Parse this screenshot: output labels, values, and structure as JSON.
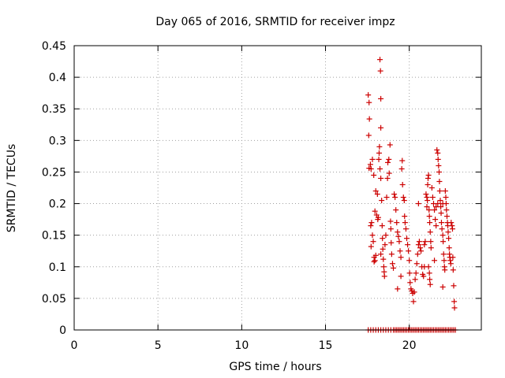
{
  "chart_data": {
    "type": "scatter",
    "title": "Day 065 of 2016, SRMTID for receiver impz",
    "xlabel": "GPS time / hours",
    "ylabel": "SRMTID / TECUs",
    "xlim": [
      0,
      24.3
    ],
    "ylim": [
      0,
      0.45
    ],
    "grid": true,
    "marker": "+",
    "color": "#cc0000",
    "x_ticks": [
      {
        "value": 0,
        "label": "0"
      },
      {
        "value": 5,
        "label": "5"
      },
      {
        "value": 10,
        "label": "10"
      },
      {
        "value": 15,
        "label": "15"
      },
      {
        "value": 20,
        "label": "20"
      }
    ],
    "y_ticks": [
      {
        "value": 0,
        "label": "0"
      },
      {
        "value": 0.05,
        "label": "0.05"
      },
      {
        "value": 0.1,
        "label": "0.1"
      },
      {
        "value": 0.15,
        "label": "0.15"
      },
      {
        "value": 0.2,
        "label": "0.2"
      },
      {
        "value": 0.25,
        "label": "0.25"
      },
      {
        "value": 0.3,
        "label": "0.3"
      },
      {
        "value": 0.35,
        "label": "0.35"
      },
      {
        "value": 0.4,
        "label": "0.4"
      },
      {
        "value": 0.45,
        "label": "0.45"
      }
    ],
    "series": [
      {
        "name": "SRMTID",
        "points": [
          [
            17.55,
            0.372
          ],
          [
            17.6,
            0.36
          ],
          [
            17.62,
            0.334
          ],
          [
            17.58,
            0.308
          ],
          [
            17.6,
            0.256
          ],
          [
            17.68,
            0.262
          ],
          [
            17.72,
            0.255
          ],
          [
            17.8,
            0.27
          ],
          [
            17.88,
            0.245
          ],
          [
            17.75,
            0.17
          ],
          [
            17.7,
            0.165
          ],
          [
            17.8,
            0.15
          ],
          [
            17.85,
            0.14
          ],
          [
            17.72,
            0.132
          ],
          [
            17.9,
            0.115
          ],
          [
            17.95,
            0.11
          ],
          [
            18.0,
            0.118
          ],
          [
            17.95,
            0.188
          ],
          [
            18.05,
            0.182
          ],
          [
            18.0,
            0.22
          ],
          [
            18.1,
            0.215
          ],
          [
            18.12,
            0.175
          ],
          [
            18.15,
            0.178
          ],
          [
            18.25,
            0.428
          ],
          [
            18.28,
            0.41
          ],
          [
            18.3,
            0.366
          ],
          [
            18.3,
            0.32
          ],
          [
            18.22,
            0.29
          ],
          [
            18.2,
            0.28
          ],
          [
            18.18,
            0.27
          ],
          [
            18.25,
            0.255
          ],
          [
            18.3,
            0.24
          ],
          [
            18.35,
            0.205
          ],
          [
            18.38,
            0.165
          ],
          [
            18.4,
            0.145
          ],
          [
            18.42,
            0.128
          ],
          [
            18.45,
            0.112
          ],
          [
            18.48,
            0.1
          ],
          [
            18.5,
            0.092
          ],
          [
            18.52,
            0.085
          ],
          [
            18.55,
            0.135
          ],
          [
            18.6,
            0.15
          ],
          [
            18.65,
            0.21
          ],
          [
            18.7,
            0.24
          ],
          [
            18.72,
            0.265
          ],
          [
            18.78,
            0.27
          ],
          [
            18.8,
            0.248
          ],
          [
            18.85,
            0.293
          ],
          [
            18.88,
            0.172
          ],
          [
            18.9,
            0.16
          ],
          [
            18.92,
            0.138
          ],
          [
            18.95,
            0.12
          ],
          [
            19.0,
            0.105
          ],
          [
            19.05,
            0.098
          ],
          [
            19.1,
            0.215
          ],
          [
            19.15,
            0.21
          ],
          [
            19.2,
            0.19
          ],
          [
            19.25,
            0.17
          ],
          [
            19.3,
            0.155
          ],
          [
            19.35,
            0.148
          ],
          [
            19.4,
            0.14
          ],
          [
            19.45,
            0.125
          ],
          [
            19.5,
            0.115
          ],
          [
            19.55,
            0.255
          ],
          [
            19.58,
            0.268
          ],
          [
            19.6,
            0.23
          ],
          [
            19.65,
            0.21
          ],
          [
            19.7,
            0.205
          ],
          [
            19.72,
            0.18
          ],
          [
            19.75,
            0.17
          ],
          [
            19.8,
            0.16
          ],
          [
            19.85,
            0.145
          ],
          [
            19.9,
            0.135
          ],
          [
            19.95,
            0.125
          ],
          [
            20.0,
            0.11
          ],
          [
            20.02,
            0.09
          ],
          [
            20.05,
            0.075
          ],
          [
            20.1,
            0.065
          ],
          [
            20.15,
            0.062
          ],
          [
            20.2,
            0.058
          ],
          [
            20.25,
            0.045
          ],
          [
            20.3,
            0.06
          ],
          [
            20.35,
            0.08
          ],
          [
            20.4,
            0.09
          ],
          [
            20.45,
            0.105
          ],
          [
            20.5,
            0.12
          ],
          [
            20.55,
            0.135
          ],
          [
            20.6,
            0.14
          ],
          [
            20.65,
            0.13
          ],
          [
            20.7,
            0.125
          ],
          [
            20.75,
            0.1
          ],
          [
            20.8,
            0.088
          ],
          [
            20.85,
            0.085
          ],
          [
            20.9,
            0.135
          ],
          [
            20.95,
            0.14
          ],
          [
            21.0,
            0.215
          ],
          [
            21.05,
            0.21
          ],
          [
            21.08,
            0.205
          ],
          [
            21.1,
            0.23
          ],
          [
            21.12,
            0.24
          ],
          [
            21.15,
            0.245
          ],
          [
            21.18,
            0.19
          ],
          [
            21.2,
            0.18
          ],
          [
            21.22,
            0.17
          ],
          [
            21.25,
            0.155
          ],
          [
            21.28,
            0.14
          ],
          [
            21.3,
            0.13
          ],
          [
            21.15,
            0.1
          ],
          [
            21.2,
            0.09
          ],
          [
            21.22,
            0.08
          ],
          [
            21.25,
            0.072
          ],
          [
            21.35,
            0.225
          ],
          [
            21.4,
            0.21
          ],
          [
            21.45,
            0.2
          ],
          [
            21.5,
            0.19
          ],
          [
            21.55,
            0.175
          ],
          [
            21.6,
            0.165
          ],
          [
            21.65,
            0.285
          ],
          [
            21.7,
            0.28
          ],
          [
            21.72,
            0.27
          ],
          [
            21.75,
            0.26
          ],
          [
            21.78,
            0.25
          ],
          [
            21.8,
            0.235
          ],
          [
            21.82,
            0.22
          ],
          [
            21.85,
            0.205
          ],
          [
            21.88,
            0.195
          ],
          [
            21.9,
            0.185
          ],
          [
            21.92,
            0.17
          ],
          [
            21.95,
            0.16
          ],
          [
            22.0,
            0.15
          ],
          [
            22.02,
            0.14
          ],
          [
            22.05,
            0.12
          ],
          [
            22.08,
            0.11
          ],
          [
            22.1,
            0.1
          ],
          [
            22.12,
            0.095
          ],
          [
            22.15,
            0.22
          ],
          [
            22.18,
            0.21
          ],
          [
            22.2,
            0.2
          ],
          [
            22.22,
            0.19
          ],
          [
            22.25,
            0.18
          ],
          [
            22.28,
            0.17
          ],
          [
            22.3,
            0.165
          ],
          [
            22.32,
            0.155
          ],
          [
            22.35,
            0.145
          ],
          [
            22.38,
            0.13
          ],
          [
            22.4,
            0.12
          ],
          [
            22.42,
            0.115
          ],
          [
            22.45,
            0.11
          ],
          [
            22.48,
            0.105
          ],
          [
            22.5,
            0.17
          ],
          [
            22.55,
            0.165
          ],
          [
            22.58,
            0.16
          ],
          [
            22.6,
            0.115
          ],
          [
            22.62,
            0.095
          ],
          [
            22.65,
            0.07
          ],
          [
            22.68,
            0.045
          ],
          [
            22.7,
            0.035
          ],
          [
            22.0,
            0.068
          ],
          [
            21.5,
            0.11
          ],
          [
            20.9,
            0.1
          ],
          [
            19.3,
            0.065
          ],
          [
            19.5,
            0.085
          ],
          [
            18.3,
            0.12
          ],
          [
            17.9,
            0.108
          ],
          [
            21.6,
            0.195
          ],
          [
            21.7,
            0.2
          ],
          [
            22.0,
            0.2
          ],
          [
            20.55,
            0.2
          ],
          [
            21.05,
            0.195
          ]
        ],
        "zeros_x": [
          17.55,
          17.7,
          17.85,
          18.0,
          18.15,
          18.3,
          18.45,
          18.6,
          18.75,
          18.9,
          19.05,
          19.15,
          19.25,
          19.35,
          19.45,
          19.55,
          19.65,
          19.75,
          19.85,
          19.95,
          20.05,
          20.15,
          20.25,
          20.35,
          20.45,
          20.55,
          20.65,
          20.75,
          20.85,
          20.95,
          21.05,
          21.15,
          21.25,
          21.35,
          21.45,
          21.55,
          21.65,
          21.75,
          21.85,
          21.95,
          22.05,
          22.15,
          22.25,
          22.35,
          22.45,
          22.55,
          22.65,
          22.75
        ]
      }
    ]
  }
}
